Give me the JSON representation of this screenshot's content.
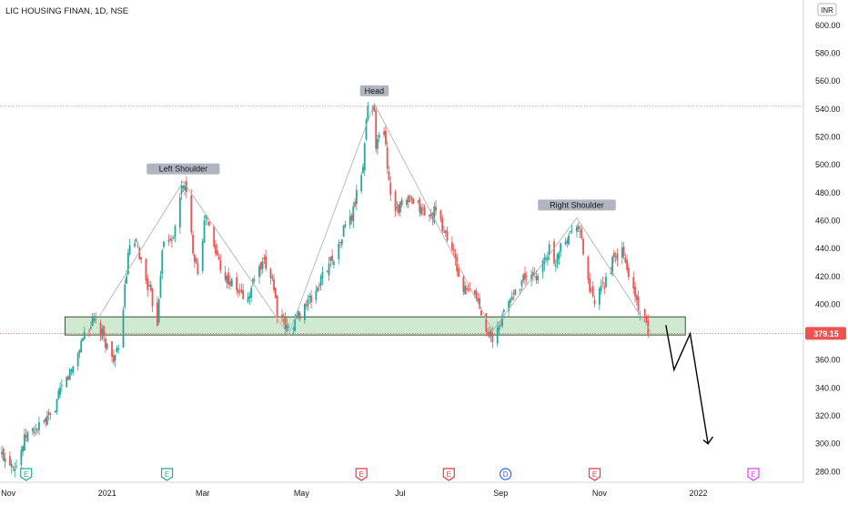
{
  "header": {
    "symbol_title": "LIC HOUSING FINAN, 1D, NSE",
    "currency_label": "INR"
  },
  "chart_data": {
    "type": "candlestick",
    "title": "LIC HOUSING FINAN, 1D, NSE",
    "xlabel": "",
    "ylabel": "",
    "ylim": [
      275,
      612
    ],
    "x_ticks": [
      "Nov",
      "2021",
      "Mar",
      "May",
      "Jul",
      "Sep",
      "Nov",
      "2022"
    ],
    "y_ticks": [
      280,
      300,
      320,
      340,
      360,
      380,
      400,
      420,
      440,
      460,
      480,
      500,
      520,
      540,
      560,
      580,
      600
    ],
    "price_path": [
      [
        "2020-10-28",
        292
      ],
      [
        "2020-11-06",
        285
      ],
      [
        "2020-11-12",
        306
      ],
      [
        "2020-11-20",
        312
      ],
      [
        "2020-11-27",
        318
      ],
      [
        "2020-12-04",
        340
      ],
      [
        "2020-12-11",
        355
      ],
      [
        "2020-12-18",
        380
      ],
      [
        "2020-12-24",
        388
      ],
      [
        "2020-12-29",
        378
      ],
      [
        "2021-01-04",
        362
      ],
      [
        "2021-01-08",
        365
      ],
      [
        "2021-01-12",
        412
      ],
      [
        "2021-01-15",
        443
      ],
      [
        "2021-01-20",
        440
      ],
      [
        "2021-01-22",
        430
      ],
      [
        "2021-01-27",
        410
      ],
      [
        "2021-02-01",
        388
      ],
      [
        "2021-02-04",
        442
      ],
      [
        "2021-02-09",
        446
      ],
      [
        "2021-02-12",
        452
      ],
      [
        "2021-02-15",
        478
      ],
      [
        "2021-02-17",
        488
      ],
      [
        "2021-02-19",
        478
      ],
      [
        "2021-02-23",
        440
      ],
      [
        "2021-02-26",
        425
      ],
      [
        "2021-03-03",
        465
      ],
      [
        "2021-03-08",
        440
      ],
      [
        "2021-03-15",
        420
      ],
      [
        "2021-03-22",
        410
      ],
      [
        "2021-03-29",
        403
      ],
      [
        "2021-04-02",
        420
      ],
      [
        "2021-04-08",
        428
      ],
      [
        "2021-04-13",
        420
      ],
      [
        "2021-04-16",
        395
      ],
      [
        "2021-04-20",
        385
      ],
      [
        "2021-04-23",
        382
      ],
      [
        "2021-04-28",
        390
      ],
      [
        "2021-05-03",
        400
      ],
      [
        "2021-05-07",
        403
      ],
      [
        "2021-05-12",
        415
      ],
      [
        "2021-05-18",
        430
      ],
      [
        "2021-05-24",
        440
      ],
      [
        "2021-05-28",
        458
      ],
      [
        "2021-06-01",
        462
      ],
      [
        "2021-06-04",
        478
      ],
      [
        "2021-06-08",
        500
      ],
      [
        "2021-06-10",
        532
      ],
      [
        "2021-06-11",
        540
      ],
      [
        "2021-06-15",
        542
      ],
      [
        "2021-06-16",
        515
      ],
      [
        "2021-06-21",
        525
      ],
      [
        "2021-06-23",
        500
      ],
      [
        "2021-06-25",
        480
      ],
      [
        "2021-06-29",
        468
      ],
      [
        "2021-07-05",
        473
      ],
      [
        "2021-07-12",
        470
      ],
      [
        "2021-07-19",
        462
      ],
      [
        "2021-07-22",
        467
      ],
      [
        "2021-07-27",
        455
      ],
      [
        "2021-08-02",
        440
      ],
      [
        "2021-08-05",
        425
      ],
      [
        "2021-08-09",
        410
      ],
      [
        "2021-08-16",
        408
      ],
      [
        "2021-08-20",
        395
      ],
      [
        "2021-08-25",
        378
      ],
      [
        "2021-08-27",
        372
      ],
      [
        "2021-08-31",
        385
      ],
      [
        "2021-09-06",
        402
      ],
      [
        "2021-09-10",
        410
      ],
      [
        "2021-09-16",
        420
      ],
      [
        "2021-09-22",
        418
      ],
      [
        "2021-09-27",
        430
      ],
      [
        "2021-10-01",
        440
      ],
      [
        "2021-10-04",
        427
      ],
      [
        "2021-10-08",
        445
      ],
      [
        "2021-10-13",
        450
      ],
      [
        "2021-10-18",
        460
      ],
      [
        "2021-10-21",
        445
      ],
      [
        "2021-10-26",
        410
      ],
      [
        "2021-10-29",
        400
      ],
      [
        "2021-11-03",
        412
      ],
      [
        "2021-11-09",
        430
      ],
      [
        "2021-11-15",
        438
      ],
      [
        "2021-11-18",
        425
      ],
      [
        "2021-11-22",
        410
      ],
      [
        "2021-11-26",
        395
      ],
      [
        "2021-11-30",
        385
      ],
      [
        "2021-12-01",
        379.15
      ]
    ],
    "annotations": [
      {
        "text": "Left Shoulder",
        "x": "2021-02-17",
        "y": 488
      },
      {
        "text": "Head",
        "x": "2021-06-15",
        "y": 544
      },
      {
        "text": "Right Shoulder",
        "x": "2021-10-18",
        "y": 462
      }
    ],
    "pattern_line": [
      [
        "2020-12-27",
        391
      ],
      [
        "2021-02-17",
        488
      ],
      [
        "2021-04-23",
        378
      ],
      [
        "2021-06-15",
        544
      ],
      [
        "2021-08-27",
        381
      ],
      [
        "2021-10-18",
        462
      ],
      [
        "2021-12-03",
        380
      ]
    ],
    "support_zone": {
      "x_from": "2020-12-06",
      "x_to": "2021-12-24",
      "y_low": 378,
      "y_high": 391
    },
    "head_level": 542,
    "last_price": {
      "label": "379.15",
      "value": 379.15
    },
    "projection": [
      [
        "2021-12-12",
        385
      ],
      [
        "2021-12-17",
        353
      ],
      [
        "2021-12-27",
        379
      ],
      [
        "2022-01-07",
        300
      ],
      [
        "2022-01-10",
        305
      ]
    ],
    "events": [
      {
        "letter": "E",
        "kind": "earnings-reported",
        "x": "2020-11-12"
      },
      {
        "letter": "E",
        "kind": "earnings-reported",
        "x": "2021-02-07"
      },
      {
        "letter": "E",
        "kind": "earnings-missed",
        "x": "2021-06-07"
      },
      {
        "letter": "E",
        "kind": "earnings-missed",
        "x": "2021-07-31"
      },
      {
        "letter": "D",
        "kind": "dividend",
        "x": "2021-09-04"
      },
      {
        "letter": "E",
        "kind": "earnings-missed",
        "x": "2021-10-29"
      },
      {
        "letter": "E",
        "kind": "earnings-upcoming",
        "x": "2022-02-04"
      }
    ],
    "grid": false,
    "colors": {
      "up": "#26a69a",
      "down": "#ef5350",
      "zone_fill": "#c8e6c9",
      "zone_border": "#2e3b2e",
      "pattern": "#b2b5be",
      "price_line": "#ef5350",
      "earnings_reported": "#22ab94",
      "earnings_missed": "#f23645",
      "dividend": "#2962ff",
      "earnings_upcoming": "#e040fb",
      "label_bg": "#b2b5be",
      "axis_text": "#131722"
    }
  }
}
